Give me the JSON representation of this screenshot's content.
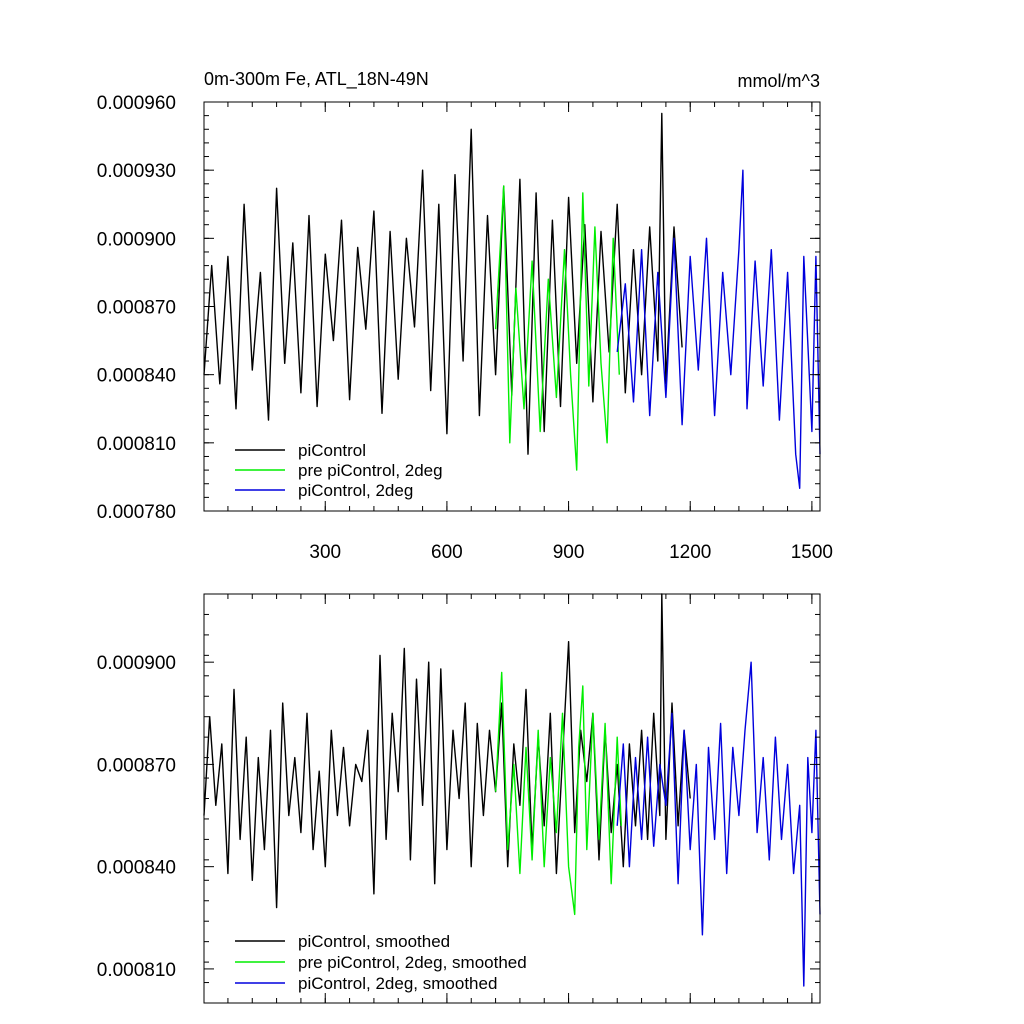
{
  "figure": {
    "title_left": "0m-300m Fe, ATL_18N-49N",
    "title_right": "mmol/m^3"
  },
  "chart_data": [
    {
      "type": "line",
      "xlim": [
        1,
        1520
      ],
      "ylim": [
        0.00078,
        0.00096
      ],
      "y_ticks": [
        0.00078,
        0.00081,
        0.00084,
        0.00087,
        0.0009,
        0.00093,
        0.00096
      ],
      "y_tick_labels": [
        "0.000780",
        "0.000810",
        "0.000840",
        "0.000870",
        "0.000900",
        "0.000930",
        "0.000960"
      ],
      "x_ticks": [
        300,
        600,
        900,
        1200,
        1500
      ],
      "x_tick_labels": [
        "300",
        "600",
        "900",
        "1200",
        "1500"
      ],
      "legend_position": "bottom-left",
      "series": [
        {
          "name": "piControl",
          "color": "#000000",
          "x": [
            1,
            20,
            40,
            60,
            80,
            100,
            120,
            140,
            160,
            180,
            200,
            220,
            240,
            260,
            280,
            300,
            320,
            340,
            360,
            380,
            400,
            420,
            440,
            460,
            480,
            500,
            520,
            540,
            560,
            580,
            600,
            620,
            640,
            660,
            680,
            700,
            720,
            740,
            760,
            780,
            800,
            820,
            840,
            860,
            880,
            900,
            920,
            940,
            960,
            980,
            1000,
            1020,
            1040,
            1060,
            1080,
            1100,
            1120,
            1130,
            1140,
            1160,
            1180
          ],
          "y": [
            0.00084,
            0.000888,
            0.000836,
            0.000892,
            0.000825,
            0.000915,
            0.000842,
            0.000885,
            0.00082,
            0.000922,
            0.000845,
            0.000898,
            0.000832,
            0.00091,
            0.000826,
            0.000893,
            0.000855,
            0.000908,
            0.000829,
            0.000896,
            0.00086,
            0.000912,
            0.000823,
            0.000903,
            0.000838,
            0.0009,
            0.000861,
            0.00093,
            0.000833,
            0.000915,
            0.000814,
            0.000928,
            0.000846,
            0.000948,
            0.000822,
            0.00091,
            0.00084,
            0.000923,
            0.000831,
            0.000926,
            0.000805,
            0.00092,
            0.000815,
            0.000908,
            0.000826,
            0.000918,
            0.000845,
            0.000906,
            0.000828,
            0.000903,
            0.00085,
            0.000915,
            0.000832,
            0.000895,
            0.00084,
            0.000905,
            0.000846,
            0.000955,
            0.000836,
            0.000905,
            0.000852
          ]
        },
        {
          "name": "pre piControl, 2deg",
          "color": "#00ee00",
          "x": [
            720,
            740,
            755,
            770,
            790,
            810,
            830,
            850,
            870,
            890,
            905,
            920,
            935,
            950,
            965,
            980,
            995,
            1010,
            1025
          ],
          "y": [
            0.00086,
            0.000923,
            0.00081,
            0.000878,
            0.000825,
            0.00089,
            0.000815,
            0.000882,
            0.00083,
            0.000895,
            0.00084,
            0.000798,
            0.00092,
            0.000835,
            0.000905,
            0.000845,
            0.00081,
            0.0009,
            0.00084
          ]
        },
        {
          "name": "piControl, 2deg",
          "color": "#0000dd",
          "x": [
            1020,
            1040,
            1060,
            1080,
            1100,
            1120,
            1140,
            1160,
            1180,
            1200,
            1220,
            1240,
            1260,
            1280,
            1300,
            1320,
            1330,
            1340,
            1360,
            1380,
            1400,
            1420,
            1440,
            1460,
            1470,
            1480,
            1500,
            1510,
            1520
          ],
          "y": [
            0.00085,
            0.00088,
            0.000828,
            0.000895,
            0.000822,
            0.000885,
            0.00083,
            0.0009,
            0.000818,
            0.000892,
            0.000842,
            0.0009,
            0.000822,
            0.000885,
            0.00084,
            0.000895,
            0.00093,
            0.000825,
            0.00089,
            0.000835,
            0.000895,
            0.00082,
            0.000885,
            0.000805,
            0.00079,
            0.000892,
            0.000815,
            0.000892,
            0.000805
          ]
        }
      ]
    },
    {
      "type": "line",
      "xlim": [
        1,
        1520
      ],
      "ylim": [
        0.0008,
        0.00092
      ],
      "y_ticks": [
        0.00081,
        0.00084,
        0.00087,
        0.0009
      ],
      "y_tick_labels": [
        "0.000810",
        "0.000840",
        "0.000870",
        "0.000900"
      ],
      "x_ticks": [
        300,
        600,
        900,
        1200,
        1500
      ],
      "x_tick_labels": [
        "",
        "",
        "",
        "",
        ""
      ],
      "legend_position": "bottom-left",
      "series": [
        {
          "name": "piControl, smoothed",
          "color": "#000000",
          "x": [
            1,
            15,
            30,
            45,
            60,
            75,
            90,
            105,
            120,
            135,
            150,
            165,
            180,
            195,
            210,
            225,
            240,
            255,
            270,
            285,
            300,
            315,
            330,
            345,
            360,
            375,
            390,
            405,
            420,
            435,
            450,
            465,
            480,
            495,
            510,
            525,
            540,
            555,
            570,
            585,
            600,
            615,
            630,
            645,
            660,
            675,
            690,
            705,
            720,
            735,
            750,
            765,
            780,
            795,
            810,
            825,
            840,
            855,
            870,
            885,
            900,
            915,
            930,
            945,
            960,
            975,
            990,
            1005,
            1020,
            1035,
            1050,
            1065,
            1080,
            1095,
            1110,
            1125,
            1130,
            1140,
            1155,
            1170,
            1185,
            1200
          ],
          "y": [
            0.000855,
            0.000884,
            0.000858,
            0.000876,
            0.000838,
            0.000892,
            0.000848,
            0.000878,
            0.000836,
            0.000872,
            0.000845,
            0.00088,
            0.000828,
            0.000888,
            0.000855,
            0.000872,
            0.00085,
            0.000885,
            0.000845,
            0.000868,
            0.00084,
            0.00088,
            0.000855,
            0.000875,
            0.000852,
            0.00087,
            0.000865,
            0.00088,
            0.000832,
            0.000902,
            0.000848,
            0.000885,
            0.000862,
            0.000904,
            0.000842,
            0.000895,
            0.000858,
            0.0009,
            0.000835,
            0.000898,
            0.000845,
            0.00088,
            0.00086,
            0.000888,
            0.00084,
            0.000882,
            0.000855,
            0.00088,
            0.000862,
            0.000888,
            0.00084,
            0.000876,
            0.000858,
            0.000892,
            0.000845,
            0.000878,
            0.000852,
            0.000885,
            0.000838,
            0.000872,
            0.000906,
            0.00085,
            0.00088,
            0.000865,
            0.000885,
            0.000842,
            0.00088,
            0.00085,
            0.00087,
            0.00084,
            0.000876,
            0.000852,
            0.00088,
            0.000848,
            0.000885,
            0.000855,
            0.00092,
            0.000848,
            0.000888,
            0.000852,
            0.00088,
            0.00086
          ]
        },
        {
          "name": "pre piControl, 2deg, smoothed",
          "color": "#00ee00",
          "x": [
            720,
            735,
            750,
            765,
            780,
            795,
            810,
            825,
            840,
            855,
            870,
            885,
            900,
            915,
            925,
            935,
            945,
            960,
            975,
            990,
            1005,
            1020,
            1030
          ],
          "y": [
            0.000862,
            0.000897,
            0.000845,
            0.00087,
            0.000838,
            0.000875,
            0.000842,
            0.00088,
            0.00084,
            0.000872,
            0.00085,
            0.000885,
            0.00084,
            0.000826,
            0.000875,
            0.000893,
            0.000845,
            0.000885,
            0.000848,
            0.000882,
            0.000835,
            0.000878,
            0.000852
          ]
        },
        {
          "name": "piControl, 2deg, smoothed",
          "color": "#0000dd",
          "x": [
            1020,
            1035,
            1050,
            1065,
            1080,
            1095,
            1110,
            1125,
            1140,
            1155,
            1170,
            1185,
            1200,
            1215,
            1230,
            1245,
            1260,
            1275,
            1290,
            1305,
            1320,
            1335,
            1350,
            1365,
            1380,
            1395,
            1410,
            1425,
            1440,
            1455,
            1470,
            1480,
            1490,
            1500,
            1510,
            1520
          ],
          "y": [
            0.000852,
            0.000876,
            0.00084,
            0.000872,
            0.000848,
            0.000878,
            0.000846,
            0.00087,
            0.000858,
            0.000885,
            0.000835,
            0.00088,
            0.000845,
            0.00087,
            0.00082,
            0.000875,
            0.000848,
            0.000882,
            0.000838,
            0.000875,
            0.000855,
            0.00088,
            0.0009,
            0.00085,
            0.000872,
            0.000842,
            0.000878,
            0.000848,
            0.00087,
            0.000838,
            0.000858,
            0.000805,
            0.000872,
            0.00085,
            0.00088,
            0.000826
          ]
        }
      ]
    }
  ]
}
